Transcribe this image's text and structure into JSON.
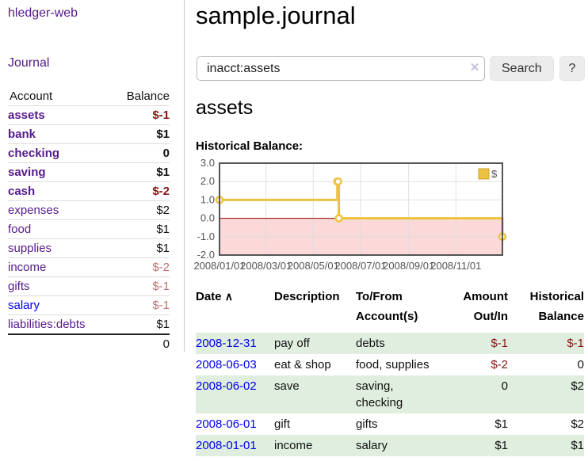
{
  "colors": {
    "link_visited_purple": "#551a8b",
    "link_blue": "#0000ee",
    "negative_strong": "#8b1414",
    "negative_soft": "#bf7173",
    "row_stripe_green": "#dfeede",
    "chart_line_yellow": "#edc240",
    "chart_negative_fill": "#fbd9d9",
    "chart_zero_line": "#8b0000"
  },
  "sidebar": {
    "app_title": "hledger-web",
    "nav": {
      "journal_label": "Journal"
    },
    "accounts_table": {
      "headers": {
        "account": "Account",
        "balance": "Balance"
      },
      "accounts": [
        {
          "name": "assets",
          "balance": "$-1",
          "depth": 1,
          "bold": true,
          "name_color": "purple",
          "balance_class": "neg"
        },
        {
          "name": "bank",
          "balance": "$1",
          "depth": 2,
          "bold": true,
          "name_color": "purple",
          "balance_class": ""
        },
        {
          "name": "checking",
          "balance": "0",
          "depth": 3,
          "bold": true,
          "name_color": "purple",
          "balance_class": ""
        },
        {
          "name": "saving",
          "balance": "$1",
          "depth": 3,
          "bold": true,
          "name_color": "purple",
          "balance_class": ""
        },
        {
          "name": "cash",
          "balance": "$-2",
          "depth": 2,
          "bold": true,
          "name_color": "purple",
          "balance_class": "neg"
        },
        {
          "name": "expenses",
          "balance": "$2",
          "depth": 1,
          "bold": false,
          "name_color": "purple",
          "balance_class": ""
        },
        {
          "name": "food",
          "balance": "$1",
          "depth": 2,
          "bold": false,
          "name_color": "purple",
          "balance_class": ""
        },
        {
          "name": "supplies",
          "balance": "$1",
          "depth": 2,
          "bold": false,
          "name_color": "purple",
          "balance_class": ""
        },
        {
          "name": "income",
          "balance": "$-2",
          "depth": 1,
          "bold": false,
          "name_color": "purple",
          "balance_class": "soft"
        },
        {
          "name": "gifts",
          "balance": "$-1",
          "depth": 2,
          "bold": false,
          "name_color": "purple",
          "balance_class": "soft"
        },
        {
          "name": "salary",
          "balance": "$-1",
          "depth": 2,
          "bold": false,
          "name_color": "blue",
          "balance_class": "soft"
        },
        {
          "name": "liabilities:debts",
          "balance": "$1",
          "depth": 1,
          "bold": false,
          "name_color": "purple",
          "balance_class": ""
        }
      ],
      "total": "0"
    }
  },
  "header": {
    "title": "sample.journal"
  },
  "search": {
    "value": "inacct:assets",
    "clear_icon": "✕",
    "button_label": "Search",
    "help_label": "?"
  },
  "account_view": {
    "heading": "assets",
    "chart_label": "Historical Balance:"
  },
  "chart_data": {
    "type": "line",
    "step": true,
    "title": "Historical Balance",
    "x_range_days": 365,
    "ylim": [
      -2,
      3
    ],
    "yticks": [
      {
        "label": "3.0",
        "value": 3
      },
      {
        "label": "2.0",
        "value": 2
      },
      {
        "label": "1.0",
        "value": 1
      },
      {
        "label": "0.0",
        "value": 0
      },
      {
        "label": "-1.0",
        "value": -1
      },
      {
        "label": "-2.0",
        "value": -2
      }
    ],
    "xticks": [
      {
        "label": "2008/01/01",
        "day": 0
      },
      {
        "label": "2008/03/01",
        "day": 60
      },
      {
        "label": "2008/05/01",
        "day": 121
      },
      {
        "label": "2008/07/01",
        "day": 182
      },
      {
        "label": "2008/09/01",
        "day": 244
      },
      {
        "label": "2008/11/01",
        "day": 305
      }
    ],
    "series": [
      {
        "name": "$",
        "color": "#edc240",
        "points": [
          {
            "date": "2008-01-01",
            "day": 0,
            "value": 1
          },
          {
            "date": "2008-06-01",
            "day": 152,
            "value": 2
          },
          {
            "date": "2008-06-02",
            "day": 153,
            "value": 2
          },
          {
            "date": "2008-06-03",
            "day": 154,
            "value": 0
          },
          {
            "date": "2008-12-31",
            "day": 365,
            "value": -1
          }
        ]
      }
    ],
    "negative_region_fill": "#fbd9d9",
    "zero_line_color": "#8b0000",
    "legend": {
      "label": "$",
      "swatch_color": "#edc240",
      "position": "top-right"
    },
    "grid": true
  },
  "transactions": {
    "headers": {
      "date": "Date",
      "sort_icon": "∧",
      "description": "Description",
      "accounts": "To/From Account(s)",
      "amount": "Amount Out/In",
      "balance": "Historical Balance"
    },
    "rows": [
      {
        "date": "2008-12-31",
        "description": "pay off",
        "accounts": "debts",
        "amount": "$-1",
        "amount_negative": true,
        "balance": "$-1",
        "balance_negative": true
      },
      {
        "date": "2008-06-03",
        "description": "eat & shop",
        "accounts": "food, supplies",
        "amount": "$-2",
        "amount_negative": true,
        "balance": "0",
        "balance_negative": false
      },
      {
        "date": "2008-06-02",
        "description": "save",
        "accounts": "saving, checking",
        "amount": "0",
        "amount_negative": false,
        "balance": "$2",
        "balance_negative": false
      },
      {
        "date": "2008-06-01",
        "description": "gift",
        "accounts": "gifts",
        "amount": "$1",
        "amount_negative": false,
        "balance": "$2",
        "balance_negative": false
      },
      {
        "date": "2008-01-01",
        "description": "income",
        "accounts": "salary",
        "amount": "$1",
        "amount_negative": false,
        "balance": "$1",
        "balance_negative": false
      }
    ]
  }
}
